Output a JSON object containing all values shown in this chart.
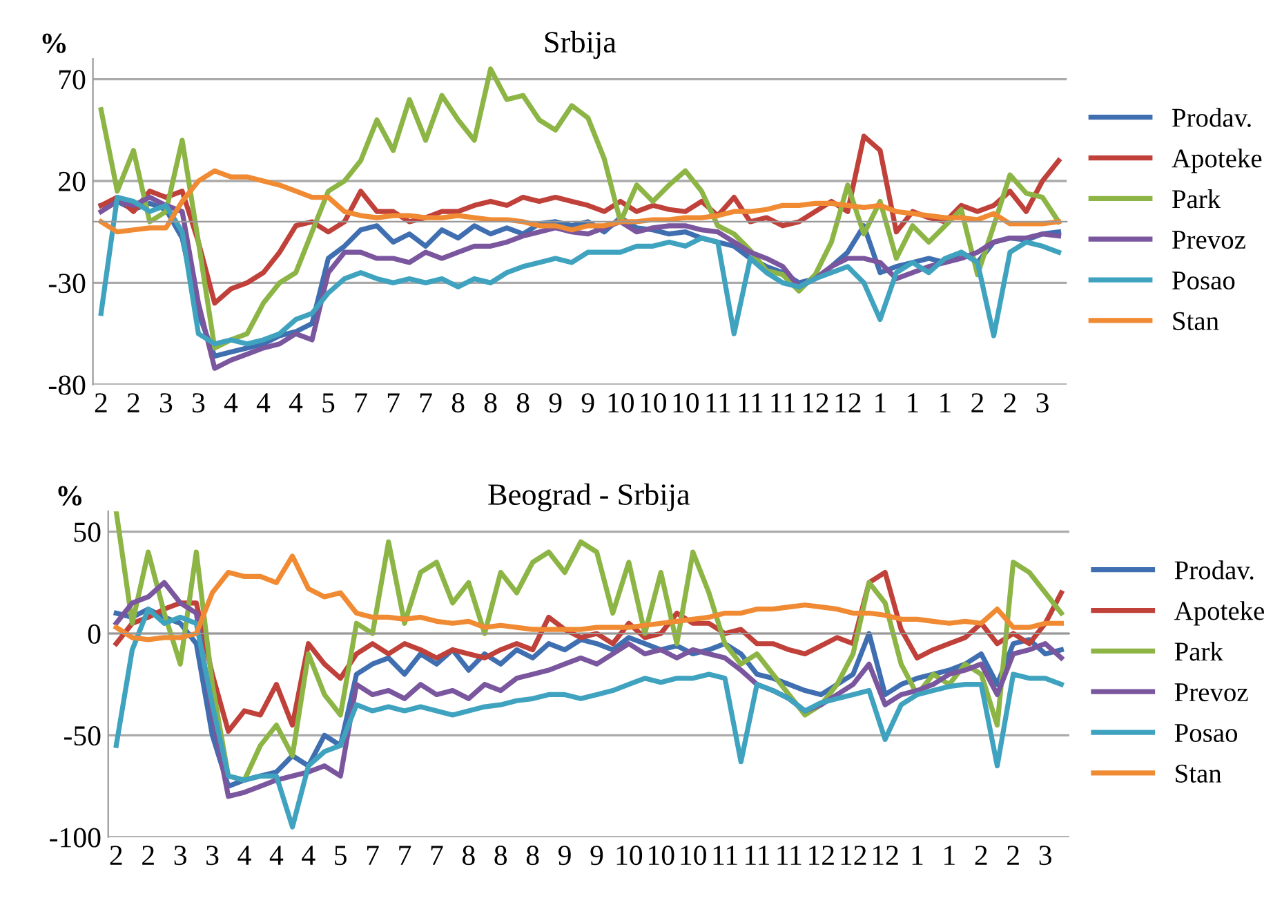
{
  "chart_data": [
    {
      "type": "line",
      "title": "Srbija",
      "ylabel": "%",
      "ylim": [
        -80,
        80
      ],
      "yticks": [
        -80,
        -30,
        20,
        70
      ],
      "grid": "y",
      "legend": "right",
      "marker": "none",
      "line_style": "solid",
      "categories": [
        "2",
        null,
        "2",
        null,
        "3",
        null,
        "3",
        null,
        "4",
        null,
        "4",
        null,
        "4",
        null,
        "5",
        null,
        "7",
        null,
        "7",
        null,
        "7",
        null,
        "8",
        null,
        "8",
        null,
        "8",
        null,
        "9",
        null,
        "9",
        null,
        "10",
        null,
        "10",
        null,
        "10",
        null,
        "11",
        null,
        "11",
        null,
        "11",
        null,
        "12",
        null,
        "12",
        null,
        "1",
        null,
        "1",
        null,
        "1",
        null,
        "2",
        null,
        "2",
        null,
        "3",
        null
      ],
      "series": [
        {
          "name": "Prodav.",
          "color": "#3f6fb0",
          "values": [
            8,
            10,
            6,
            9,
            6,
            -8,
            -45,
            -66,
            -64,
            -62,
            -60,
            -56,
            -54,
            -50,
            -18,
            -12,
            -4,
            -2,
            -10,
            -6,
            -12,
            -4,
            -8,
            -2,
            -6,
            -3,
            -6,
            -1,
            0,
            -2,
            0,
            -5,
            2,
            -3,
            -4,
            -6,
            -5,
            -8,
            -10,
            -12,
            -18,
            -22,
            -25,
            -30,
            -28,
            -22,
            -15,
            -2,
            -25,
            -22,
            -20,
            -18,
            -20,
            -15,
            -20,
            -10,
            -8,
            -9,
            -6,
            -5
          ]
        },
        {
          "name": "Apoteke",
          "color": "#c0403a",
          "values": [
            8,
            12,
            5,
            15,
            12,
            15,
            -10,
            -40,
            -33,
            -30,
            -25,
            -15,
            -2,
            0,
            -5,
            0,
            15,
            5,
            5,
            0,
            2,
            5,
            5,
            8,
            10,
            8,
            12,
            10,
            12,
            10,
            8,
            5,
            10,
            5,
            8,
            6,
            5,
            10,
            3,
            12,
            0,
            2,
            -2,
            0,
            5,
            10,
            5,
            42,
            35,
            -5,
            5,
            2,
            0,
            8,
            5,
            8,
            15,
            5,
            20,
            30
          ]
        },
        {
          "name": "Park",
          "color": "#8db545",
          "values": [
            55,
            15,
            35,
            0,
            5,
            40,
            -10,
            -62,
            -58,
            -55,
            -40,
            -30,
            -25,
            -5,
            15,
            20,
            30,
            50,
            35,
            60,
            40,
            62,
            50,
            40,
            75,
            60,
            62,
            50,
            45,
            57,
            51,
            31,
            0,
            18,
            10,
            18,
            25,
            15,
            -2,
            -6,
            -14,
            -24,
            -26,
            -34,
            -26,
            -10,
            18,
            -6,
            10,
            -18,
            -2,
            -10,
            -2,
            6,
            -26,
            -2,
            23,
            14,
            12,
            0
          ]
        },
        {
          "name": "Prevoz",
          "color": "#7a569e",
          "values": [
            5,
            10,
            8,
            12,
            8,
            5,
            -40,
            -72,
            -68,
            -65,
            -62,
            -60,
            -55,
            -58,
            -25,
            -15,
            -15,
            -18,
            -18,
            -20,
            -15,
            -18,
            -15,
            -12,
            -12,
            -10,
            -7,
            -5,
            -3,
            -5,
            -6,
            -3,
            0,
            -5,
            -3,
            -2,
            -2,
            -4,
            -5,
            -10,
            -15,
            -18,
            -22,
            -32,
            -28,
            -22,
            -18,
            -18,
            -20,
            -28,
            -25,
            -22,
            -20,
            -18,
            -15,
            -10,
            -8,
            -8,
            -6,
            -7
          ]
        },
        {
          "name": "Posao",
          "color": "#3fa3c0",
          "values": [
            -45,
            12,
            10,
            5,
            8,
            -5,
            -55,
            -60,
            -58,
            -60,
            -58,
            -55,
            -48,
            -45,
            -35,
            -28,
            -25,
            -28,
            -30,
            -28,
            -30,
            -28,
            -32,
            -28,
            -30,
            -25,
            -22,
            -20,
            -18,
            -20,
            -15,
            -15,
            -15,
            -12,
            -12,
            -10,
            -12,
            -8,
            -10,
            -55,
            -18,
            -25,
            -30,
            -32,
            -28,
            -25,
            -22,
            -30,
            -48,
            -25,
            -20,
            -25,
            -18,
            -15,
            -20,
            -56,
            -15,
            -10,
            -12,
            -15
          ]
        },
        {
          "name": "Stan",
          "color": "#f08a33",
          "values": [
            0,
            -5,
            -4,
            -3,
            -3,
            10,
            20,
            25,
            22,
            22,
            20,
            18,
            15,
            12,
            12,
            5,
            3,
            2,
            3,
            3,
            2,
            2,
            3,
            2,
            1,
            1,
            0,
            -2,
            -2,
            -4,
            -2,
            -2,
            0,
            0,
            1,
            1,
            2,
            2,
            3,
            5,
            5,
            6,
            8,
            8,
            9,
            9,
            8,
            7,
            8,
            5,
            4,
            3,
            2,
            2,
            1,
            4,
            -1,
            -1,
            -1,
            0
          ]
        }
      ]
    },
    {
      "type": "line",
      "title": "Beograd - Srbija",
      "ylabel": "%",
      "ylim": [
        -100,
        60
      ],
      "yticks": [
        -100,
        -50,
        0,
        50
      ],
      "grid": "y",
      "legend": "right",
      "marker": "none",
      "line_style": "solid",
      "categories": [
        "2",
        null,
        "2",
        null,
        "3",
        null,
        "3",
        null,
        "4",
        null,
        "4",
        null,
        "4",
        null,
        "5",
        null,
        "7",
        null,
        "7",
        null,
        "7",
        null,
        "8",
        null,
        "8",
        null,
        "8",
        null,
        "9",
        null,
        "9",
        null,
        "10",
        null,
        "10",
        null,
        "10",
        null,
        "11",
        null,
        "11",
        null,
        "11",
        null,
        "12",
        null,
        "12",
        null,
        "12",
        null,
        "1",
        null,
        "1",
        null,
        "2",
        null,
        "2",
        null,
        "3",
        null
      ],
      "series": [
        {
          "name": "Prodav.",
          "color": "#3f6fb0",
          "values": [
            10,
            8,
            12,
            8,
            5,
            -5,
            -50,
            -75,
            -72,
            -70,
            -68,
            -60,
            -65,
            -50,
            -55,
            -20,
            -15,
            -12,
            -20,
            -10,
            -15,
            -8,
            -18,
            -10,
            -15,
            -8,
            -12,
            -5,
            -8,
            -3,
            -5,
            -8,
            -2,
            -5,
            -8,
            -6,
            -10,
            -8,
            -5,
            -10,
            -20,
            -22,
            -25,
            -28,
            -30,
            -25,
            -20,
            0,
            -30,
            -25,
            -22,
            -20,
            -18,
            -15,
            -10,
            -25,
            -5,
            -3,
            -10,
            -8
          ]
        },
        {
          "name": "Apoteke",
          "color": "#c0403a",
          "values": [
            -5,
            5,
            8,
            12,
            15,
            15,
            -20,
            -48,
            -38,
            -40,
            -25,
            -45,
            -5,
            -15,
            -22,
            -10,
            -5,
            -10,
            -5,
            -8,
            -12,
            -8,
            -10,
            -12,
            -8,
            -5,
            -8,
            8,
            2,
            -2,
            0,
            -5,
            5,
            -2,
            0,
            10,
            5,
            5,
            0,
            2,
            -5,
            -5,
            -8,
            -10,
            -6,
            -2,
            -5,
            25,
            30,
            2,
            -12,
            -8,
            -5,
            -2,
            5,
            -5,
            0,
            -5,
            5,
            20
          ]
        },
        {
          "name": "Park",
          "color": "#8db545",
          "values": [
            60,
            5,
            40,
            10,
            -15,
            40,
            -25,
            -70,
            -72,
            -55,
            -45,
            -60,
            -10,
            -30,
            -40,
            5,
            0,
            45,
            5,
            30,
            35,
            15,
            25,
            0,
            30,
            20,
            35,
            40,
            30,
            45,
            40,
            10,
            35,
            0,
            30,
            -5,
            40,
            20,
            -5,
            -15,
            -10,
            -20,
            -30,
            -40,
            -35,
            -25,
            -10,
            25,
            15,
            -15,
            -30,
            -20,
            -25,
            -15,
            -20,
            -45,
            35,
            30,
            20,
            10
          ]
        },
        {
          "name": "Prevoz",
          "color": "#7a569e",
          "values": [
            5,
            15,
            18,
            25,
            15,
            10,
            -40,
            -80,
            -78,
            -75,
            -72,
            -70,
            -68,
            -65,
            -70,
            -25,
            -30,
            -28,
            -32,
            -25,
            -30,
            -28,
            -32,
            -25,
            -28,
            -22,
            -20,
            -18,
            -15,
            -12,
            -15,
            -10,
            -5,
            -10,
            -8,
            -12,
            -8,
            -10,
            -12,
            -18,
            -25,
            -28,
            -32,
            -38,
            -35,
            -30,
            -25,
            -15,
            -35,
            -30,
            -28,
            -25,
            -20,
            -18,
            -15,
            -30,
            -10,
            -8,
            -5,
            -12
          ]
        },
        {
          "name": "Posao",
          "color": "#3fa3c0",
          "values": [
            -55,
            -8,
            12,
            5,
            8,
            5,
            -35,
            -70,
            -72,
            -70,
            -70,
            -95,
            -65,
            -58,
            -55,
            -35,
            -38,
            -36,
            -38,
            -36,
            -38,
            -40,
            -38,
            -36,
            -35,
            -33,
            -32,
            -30,
            -30,
            -32,
            -30,
            -28,
            -25,
            -22,
            -24,
            -22,
            -22,
            -20,
            -22,
            -63,
            -25,
            -28,
            -32,
            -38,
            -34,
            -32,
            -30,
            -28,
            -52,
            -35,
            -30,
            -28,
            -26,
            -25,
            -25,
            -65,
            -20,
            -22,
            -22,
            -25
          ]
        },
        {
          "name": "Stan",
          "color": "#f08a33",
          "values": [
            3,
            -2,
            -3,
            -2,
            -2,
            0,
            20,
            30,
            28,
            28,
            25,
            38,
            22,
            18,
            20,
            10,
            8,
            8,
            7,
            8,
            6,
            5,
            6,
            3,
            4,
            3,
            2,
            2,
            2,
            2,
            3,
            3,
            3,
            4,
            5,
            6,
            7,
            8,
            10,
            10,
            12,
            12,
            13,
            14,
            13,
            12,
            10,
            10,
            9,
            7,
            7,
            6,
            5,
            6,
            5,
            12,
            3,
            3,
            5,
            5
          ]
        }
      ]
    }
  ]
}
